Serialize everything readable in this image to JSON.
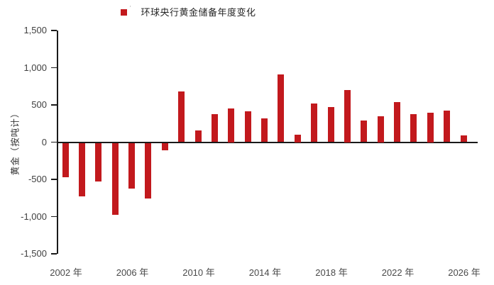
{
  "chart": {
    "legend": {
      "label": "环球央行黄金储备年度变化",
      "footnote_mark": "'"
    },
    "colors": {
      "bar": "#C2191D",
      "axis": "#1A1A1A",
      "tick_text": "#404040"
    }
  },
  "chart_data": {
    "type": "bar",
    "title": "环球央行黄金储备年度变化",
    "series_name": "环球央行黄金储备年度变化",
    "xlabel": "",
    "ylabel": "黄金（按吨计）",
    "ylim": [
      -1500,
      1500
    ],
    "grid": false,
    "legend_position": "top",
    "x": [
      2002,
      2003,
      2004,
      2005,
      2006,
      2007,
      2008,
      2009,
      2010,
      2011,
      2012,
      2013,
      2014,
      2015,
      2016,
      2017,
      2018,
      2019,
      2020,
      2021,
      2022,
      2023,
      2024,
      2025,
      2026
    ],
    "values": [
      -460,
      -720,
      -520,
      -970,
      -610,
      -750,
      -100,
      680,
      160,
      380,
      450,
      410,
      320,
      910,
      100,
      520,
      470,
      700,
      290,
      350,
      540,
      380,
      400,
      420,
      90
    ],
    "yticks": [
      1500,
      1000,
      500,
      0,
      -500,
      -1000,
      -1500
    ],
    "ytick_labels": [
      "1,500",
      "1,000",
      "500",
      "0",
      "-500",
      "-1,000",
      "-1,500"
    ],
    "xtick_years": [
      2002,
      2006,
      2010,
      2014,
      2018,
      2022,
      2026
    ],
    "xtick_labels": [
      "2002 年",
      "2006 年",
      "2010 年",
      "2014 年",
      "2018 年",
      "2022 年",
      "2026 年"
    ]
  }
}
